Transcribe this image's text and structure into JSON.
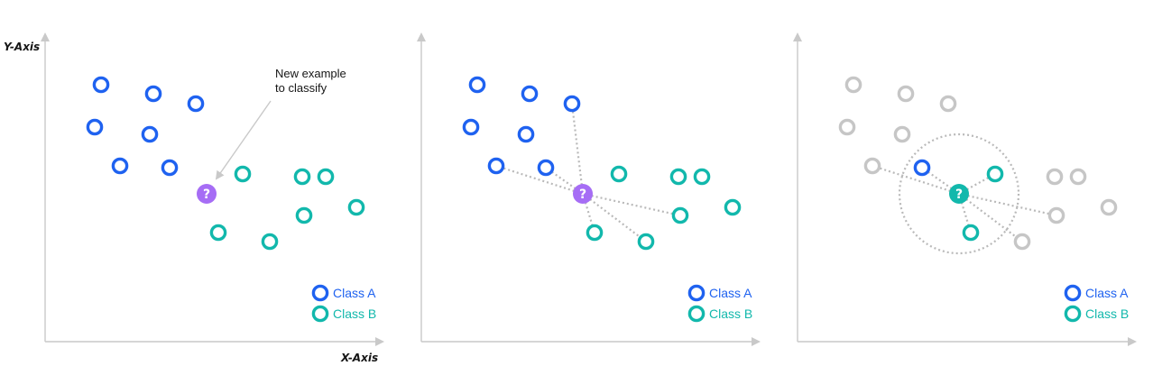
{
  "labels": {
    "y_axis": "Y-Axis",
    "x_axis": "X-Axis",
    "annotation_line1": "New example",
    "annotation_line2": "to classify",
    "question_mark": "?"
  },
  "legend": [
    {
      "label": "Class A",
      "color": "#1f62f0"
    },
    {
      "label": "Class B",
      "color": "#12b8ac"
    }
  ],
  "colors": {
    "class_a": "#1f62f0",
    "class_b": "#12b8ac",
    "unknown": "#a66df5",
    "faded": "#c6c6c6",
    "axis": "#c9c9c9"
  },
  "panels": [
    {
      "name": "step-1-new-example",
      "query_color": "unknown"
    },
    {
      "name": "step-2-distances",
      "query_color": "unknown"
    },
    {
      "name": "step-3-nearest-neighbors",
      "query_color": "class_b"
    }
  ]
}
